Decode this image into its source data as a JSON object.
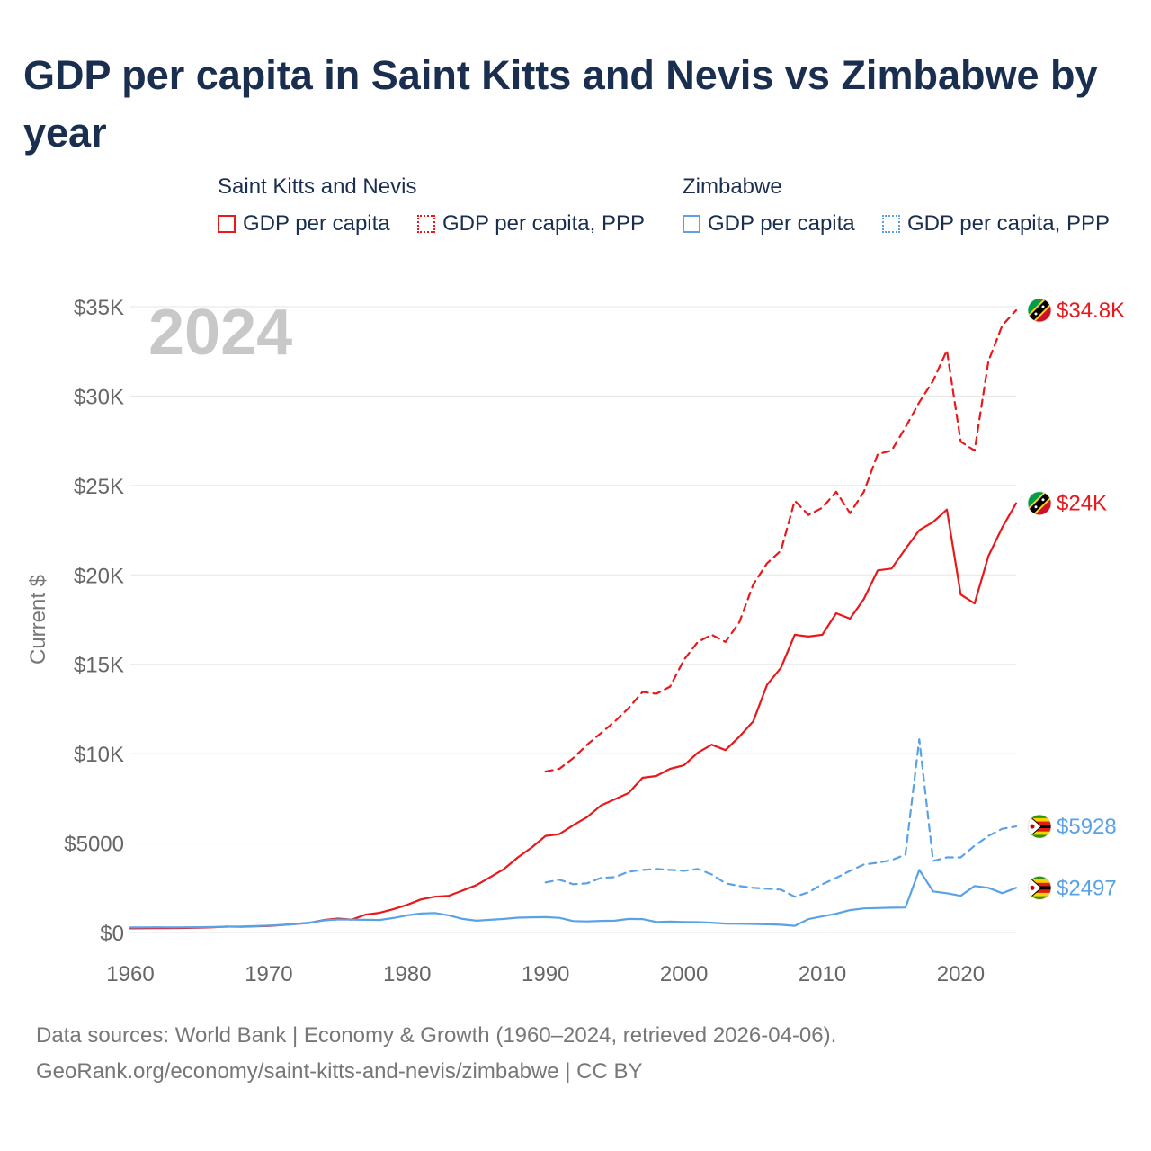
{
  "title": "GDP per capita in Saint Kitts and Nevis vs Zimbabwe by year",
  "legend": {
    "groups": [
      {
        "name": "Saint Kitts and Nevis",
        "color": "#e8191b",
        "items": [
          {
            "label": "GDP per capita",
            "style": "solid"
          },
          {
            "label": "GDP per capita, PPP",
            "style": "dotted"
          }
        ]
      },
      {
        "name": "Zimbabwe",
        "color": "#5aa2e6",
        "items": [
          {
            "label": "GDP per capita",
            "style": "solid"
          },
          {
            "label": "GDP per capita, PPP",
            "style": "dotted"
          }
        ]
      }
    ]
  },
  "year_watermark": "2024",
  "source": {
    "line1": "Data sources: World Bank | Economy & Growth (1960–2024, retrieved 2026-04-06).",
    "line2": "GeoRank.org/economy/saint-kitts-and-nevis/zimbabwe | CC BY"
  },
  "chart_data": {
    "type": "line",
    "title": "GDP per capita in Saint Kitts and Nevis vs Zimbabwe by year",
    "xlabel": "",
    "ylabel": "Current $",
    "xlim": [
      1960,
      2024
    ],
    "ylim": [
      0,
      35000
    ],
    "grid": true,
    "x_ticks": [
      1960,
      1970,
      1980,
      1990,
      2000,
      2010,
      2020
    ],
    "y_ticks": [
      0,
      5000,
      10000,
      15000,
      20000,
      25000,
      30000,
      35000
    ],
    "y_tick_labels": [
      "$0",
      "$5000",
      "$10K",
      "$15K",
      "$20K",
      "$25K",
      "$30K",
      "$35K"
    ],
    "series": [
      {
        "name": "Saint Kitts and Nevis GDP per capita",
        "color": "#e8191b",
        "dash": "solid",
        "end_label": "$24K",
        "flag": "kn",
        "x": [
          1960,
          1961,
          1962,
          1963,
          1964,
          1965,
          1966,
          1967,
          1968,
          1969,
          1970,
          1971,
          1972,
          1973,
          1974,
          1975,
          1976,
          1977,
          1978,
          1979,
          1980,
          1981,
          1982,
          1983,
          1984,
          1985,
          1986,
          1987,
          1988,
          1989,
          1990,
          1991,
          1992,
          1993,
          1994,
          1995,
          1996,
          1997,
          1998,
          1999,
          2000,
          2001,
          2002,
          2003,
          2004,
          2005,
          2006,
          2007,
          2008,
          2009,
          2010,
          2011,
          2012,
          2013,
          2014,
          2015,
          2016,
          2017,
          2018,
          2019,
          2020,
          2021,
          2022,
          2023,
          2024
        ],
        "values": [
          230,
          235,
          240,
          245,
          255,
          265,
          290,
          330,
          320,
          340,
          360,
          420,
          480,
          550,
          700,
          780,
          720,
          1000,
          1100,
          1300,
          1550,
          1850,
          2000,
          2050,
          2350,
          2650,
          3100,
          3550,
          4200,
          4750,
          5400,
          5500,
          6000,
          6450,
          7100,
          7450,
          7800,
          8650,
          8750,
          9150,
          9350,
          10050,
          10500,
          10200,
          10950,
          11800,
          13850,
          14800,
          16650,
          16550,
          16650,
          17850,
          17550,
          18650,
          20250,
          20350,
          21450,
          22500,
          22950,
          23650,
          18900,
          18400,
          21050,
          22650,
          24000
        ]
      },
      {
        "name": "Saint Kitts and Nevis GDP per capita, PPP",
        "color": "#e8191b",
        "dash": "dashed",
        "end_label": "$34.8K",
        "flag": "kn",
        "x": [
          1990,
          1991,
          1992,
          1993,
          1994,
          1995,
          1996,
          1997,
          1998,
          1999,
          2000,
          2001,
          2002,
          2003,
          2004,
          2005,
          2006,
          2007,
          2008,
          2009,
          2010,
          2011,
          2012,
          2013,
          2014,
          2015,
          2016,
          2017,
          2018,
          2019,
          2020,
          2021,
          2022,
          2023,
          2024
        ],
        "values": [
          9000,
          9150,
          9750,
          10500,
          11150,
          11800,
          12550,
          13450,
          13350,
          13750,
          15250,
          16250,
          16650,
          16250,
          17350,
          19450,
          20650,
          21350,
          24150,
          23350,
          23750,
          24650,
          23450,
          24650,
          26750,
          26950,
          28250,
          29650,
          30850,
          32550,
          27450,
          26950,
          31950,
          33950,
          34800
        ]
      },
      {
        "name": "Zimbabwe GDP per capita",
        "color": "#5aa2e6",
        "dash": "solid",
        "end_label": "$2497",
        "flag": "zw",
        "x": [
          1960,
          1961,
          1962,
          1963,
          1964,
          1965,
          1966,
          1967,
          1968,
          1969,
          1970,
          1971,
          1972,
          1973,
          1974,
          1975,
          1976,
          1977,
          1978,
          1979,
          1980,
          1981,
          1982,
          1983,
          1984,
          1985,
          1986,
          1987,
          1988,
          1989,
          1990,
          1991,
          1992,
          1993,
          1994,
          1995,
          1996,
          1997,
          1998,
          1999,
          2000,
          2001,
          2002,
          2003,
          2004,
          2005,
          2006,
          2007,
          2008,
          2009,
          2010,
          2011,
          2012,
          2013,
          2014,
          2015,
          2016,
          2017,
          2018,
          2019,
          2020,
          2021,
          2022,
          2023,
          2024
        ],
        "values": [
          280,
          285,
          290,
          285,
          290,
          295,
          310,
          320,
          330,
          355,
          380,
          420,
          480,
          560,
          680,
          730,
          720,
          710,
          700,
          810,
          960,
          1060,
          1090,
          960,
          760,
          660,
          710,
          760,
          830,
          850,
          860,
          820,
          640,
          620,
          650,
          660,
          760,
          750,
          590,
          610,
          590,
          580,
          550,
          500,
          490,
          480,
          460,
          430,
          370,
          750,
          900,
          1050,
          1250,
          1350,
          1370,
          1390,
          1400,
          3500,
          2300,
          2200,
          2050,
          2600,
          2500,
          2200,
          2497
        ]
      },
      {
        "name": "Zimbabwe GDP per capita, PPP",
        "color": "#5aa2e6",
        "dash": "dashed",
        "end_label": "$5928",
        "flag": "zw",
        "x": [
          1990,
          1991,
          1992,
          1993,
          1994,
          1995,
          1996,
          1997,
          1998,
          1999,
          2000,
          2001,
          2002,
          2003,
          2004,
          2005,
          2006,
          2007,
          2008,
          2009,
          2010,
          2011,
          2012,
          2013,
          2014,
          2015,
          2016,
          2017,
          2018,
          2019,
          2020,
          2021,
          2022,
          2023,
          2024
        ],
        "values": [
          2800,
          2950,
          2700,
          2750,
          3050,
          3100,
          3400,
          3500,
          3550,
          3500,
          3450,
          3550,
          3250,
          2750,
          2600,
          2500,
          2450,
          2400,
          2000,
          2250,
          2700,
          3050,
          3450,
          3800,
          3900,
          4050,
          4350,
          10800,
          4000,
          4200,
          4200,
          4850,
          5400,
          5800,
          5928
        ]
      }
    ]
  }
}
